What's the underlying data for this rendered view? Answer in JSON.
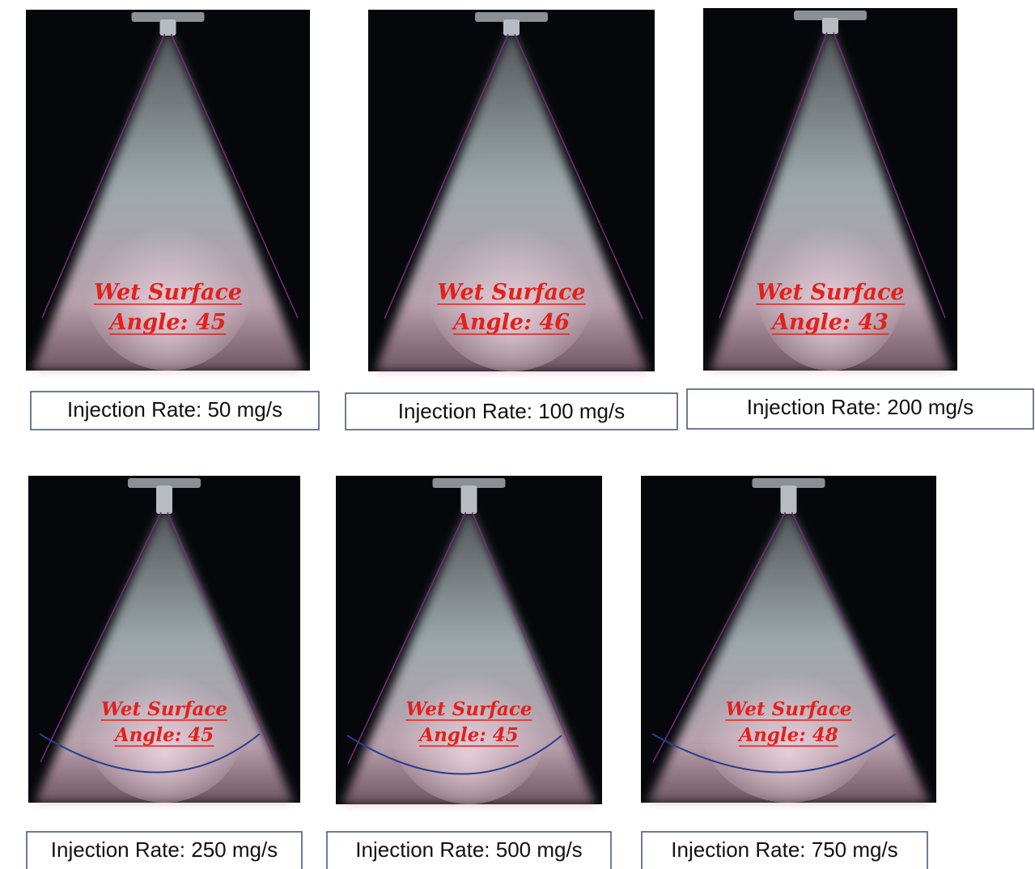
{
  "panels": [
    {
      "label_line1": "Wet Surface",
      "label_line2": "Angle: 45",
      "caption": "Injection Rate: 50 mg/s"
    },
    {
      "label_line1": "Wet Surface",
      "label_line2": "Angle: 46",
      "caption": "Injection Rate: 100 mg/s"
    },
    {
      "label_line1": "Wet Surface",
      "label_line2": "Angle: 43",
      "caption": "Injection Rate: 200 mg/s"
    },
    {
      "label_line1": "Wet Surface",
      "label_line2": "Angle: 45",
      "caption": "Injection Rate: 250 mg/s"
    },
    {
      "label_line1": "Wet Surface",
      "label_line2": "Angle: 45",
      "caption": "Injection Rate: 500 mg/s"
    },
    {
      "label_line1": "Wet Surface",
      "label_line2": "Angle: 48",
      "caption": "Injection Rate: 750 mg/s"
    }
  ]
}
